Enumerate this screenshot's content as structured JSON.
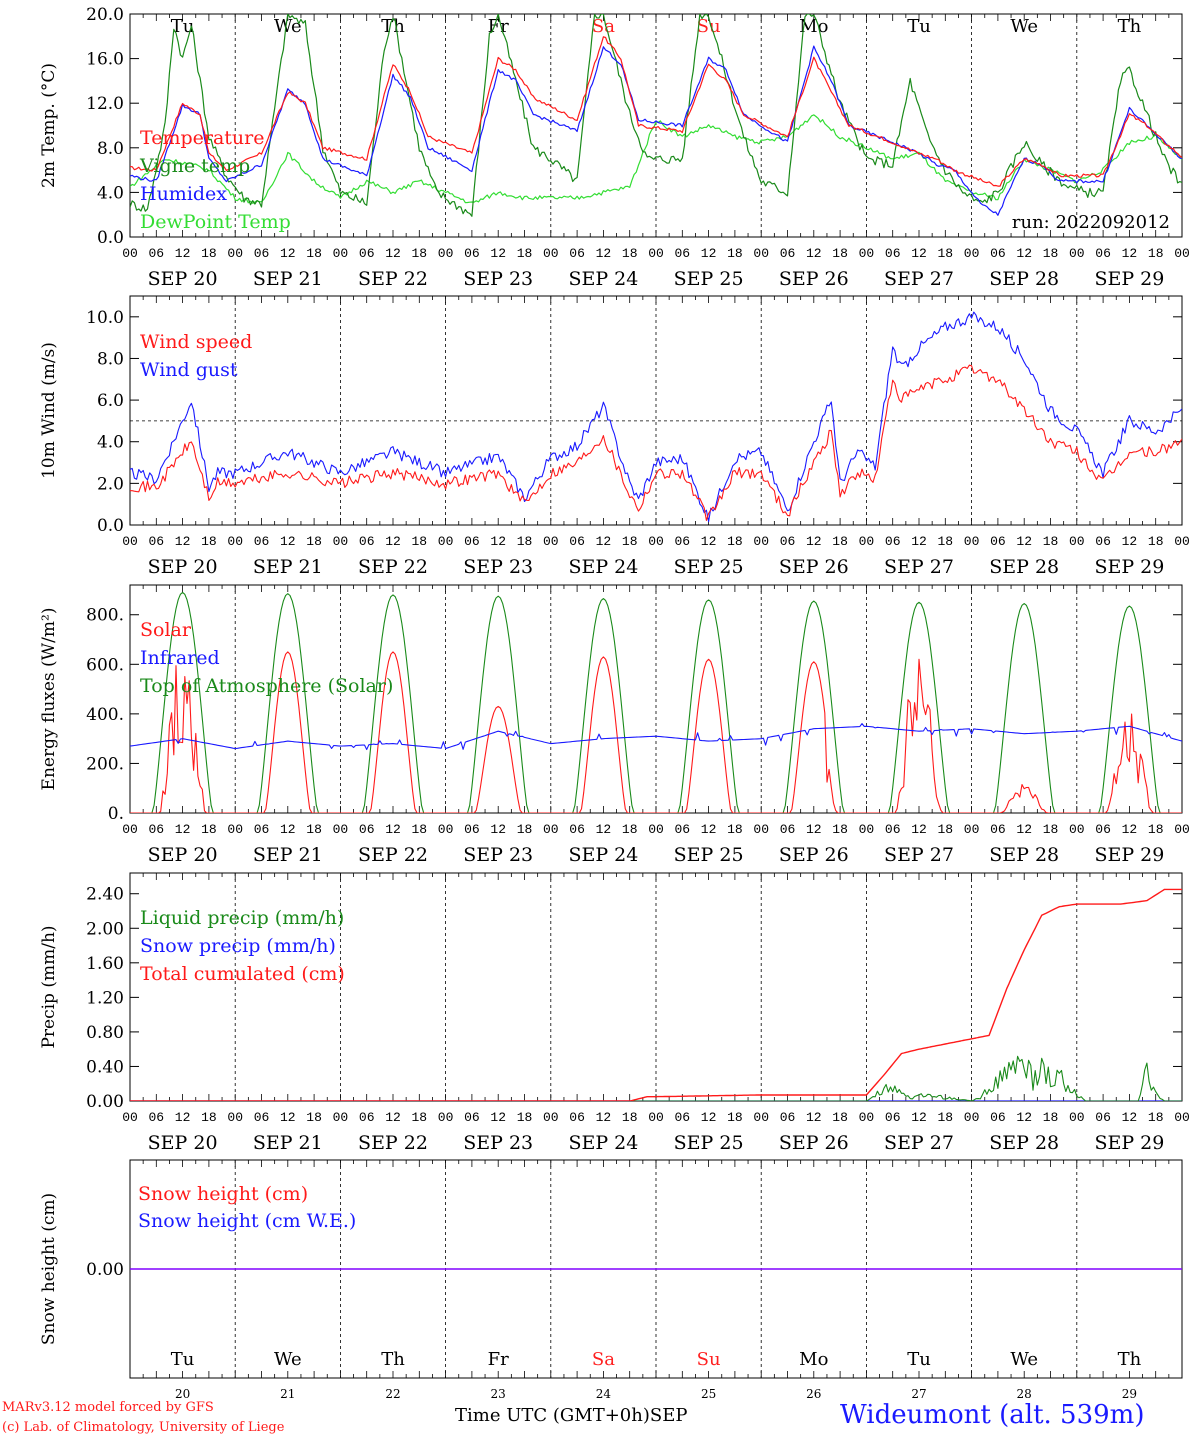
{
  "days": {
    "weekday_top": [
      "Tu",
      "We",
      "Th",
      "Fr",
      "Sa",
      "Su",
      "Mo",
      "Tu",
      "We",
      "Th"
    ],
    "weekday_bottom": [
      "Tu",
      "We",
      "Th",
      "Fr",
      "Sa",
      "Su",
      "Mo",
      "Tu",
      "We",
      "Th"
    ],
    "day_numbers": [
      "20",
      "21",
      "22",
      "23",
      "24",
      "25",
      "26",
      "27",
      "28",
      "29"
    ],
    "day_labels": [
      "SEP 20",
      "SEP 21",
      "SEP 22",
      "SEP 23",
      "SEP 24",
      "SEP 25",
      "SEP 26",
      "SEP 27",
      "SEP 28",
      "SEP 29"
    ],
    "hour_labels": [
      "00",
      "06",
      "12",
      "18"
    ],
    "weekend_color": "#ff2020",
    "normal_color": "#000000",
    "weekend_indices": [
      4,
      5
    ]
  },
  "colors": {
    "red": "#ff1a1a",
    "blue": "#1a1aff",
    "green": "#1a8a1a",
    "lightgreen": "#33dd33",
    "purple": "#8000ff"
  },
  "footer": {
    "credit1": "MARv3.12 model forced by GFS",
    "credit2": "(c) Lab. of Climatology, University of Liege",
    "xlabel": "Time UTC (GMT+0h)",
    "month": "SEP",
    "station": "Wideumont (alt. 539m)"
  },
  "run_label": "run: 2022092012",
  "chart_data": [
    {
      "type": "line",
      "ylabel": "2m Temp. (°C)",
      "ylim": [
        0,
        20
      ],
      "yticks": [
        "0.0",
        "4.0",
        "8.0",
        "12.0",
        "16.0",
        "20.0"
      ],
      "x_unit": "hours since SEP 20 00 UTC",
      "series": [
        {
          "name": "Temperature",
          "color": "red",
          "x": [
            0,
            6,
            12,
            16,
            18,
            22,
            30,
            36,
            40,
            44,
            54,
            60,
            64,
            68,
            78,
            84,
            88,
            92,
            102,
            108,
            112,
            116,
            126,
            132,
            136,
            140,
            150,
            156,
            160,
            164,
            174,
            180,
            184,
            188,
            198,
            204,
            208,
            212,
            222,
            228,
            232,
            236,
            240
          ],
          "y": [
            6.2,
            6.0,
            12.0,
            11.0,
            7.5,
            6.0,
            7.5,
            13.0,
            12.0,
            8.0,
            7.0,
            15.5,
            13.0,
            9.0,
            7.5,
            16.0,
            15.0,
            12.5,
            10.5,
            18.0,
            16.0,
            10.0,
            9.5,
            15.5,
            14.0,
            11.0,
            9.0,
            16.0,
            13.0,
            10.0,
            8.5,
            7.5,
            7.0,
            6.0,
            4.5,
            7.0,
            6.5,
            5.5,
            5.5,
            11.0,
            10.0,
            8.5,
            7.2
          ]
        },
        {
          "name": "Vigne temp",
          "color": "green",
          "x": [
            0,
            4,
            8,
            10,
            12,
            14,
            18,
            22,
            26,
            30,
            36,
            40,
            44,
            48,
            54,
            58,
            60,
            66,
            70,
            78,
            82,
            84,
            92,
            96,
            102,
            106,
            108,
            114,
            118,
            126,
            130,
            132,
            140,
            144,
            150,
            154,
            156,
            162,
            168,
            174,
            178,
            182,
            186,
            190,
            194,
            198,
            204,
            208,
            214,
            218,
            222,
            226,
            228,
            232,
            236,
            240
          ],
          "y": [
            3.0,
            2.5,
            10.0,
            19.0,
            16.0,
            19.0,
            9.0,
            5.5,
            3.5,
            3.0,
            20.0,
            19.0,
            8.0,
            4.0,
            3.0,
            17.0,
            20.0,
            8.0,
            4.0,
            2.0,
            18.0,
            20.0,
            8.0,
            7.0,
            5.0,
            20.0,
            20.0,
            11.0,
            7.0,
            7.0,
            20.0,
            20.0,
            9.0,
            5.0,
            4.0,
            20.0,
            20.0,
            12.0,
            7.0,
            6.5,
            14.0,
            9.0,
            6.0,
            4.0,
            3.0,
            4.0,
            8.5,
            6.5,
            4.5,
            4.0,
            4.0,
            14.0,
            15.0,
            11.0,
            7.0,
            4.5
          ]
        },
        {
          "name": "Humidex",
          "color": "blue",
          "x": [
            0,
            6,
            12,
            16,
            18,
            22,
            30,
            36,
            40,
            44,
            54,
            60,
            64,
            68,
            78,
            84,
            88,
            92,
            102,
            108,
            112,
            116,
            126,
            132,
            136,
            140,
            150,
            156,
            160,
            164,
            174,
            180,
            184,
            188,
            194,
            198,
            204,
            208,
            212,
            222,
            228,
            232,
            236,
            240
          ],
          "y": [
            5.5,
            5.0,
            11.8,
            11.0,
            7.0,
            5.0,
            6.5,
            13.2,
            12.0,
            7.0,
            5.5,
            14.5,
            12.5,
            8.0,
            6.0,
            15.0,
            14.0,
            11.0,
            9.5,
            17.0,
            15.5,
            10.5,
            10.0,
            16.0,
            15.0,
            11.0,
            8.5,
            17.0,
            14.0,
            10.0,
            8.5,
            7.5,
            6.5,
            6.0,
            3.0,
            2.0,
            7.0,
            6.5,
            5.0,
            5.0,
            11.5,
            10.0,
            8.5,
            7.0
          ]
        },
        {
          "name": "DewPoint Temp",
          "color": "lightgreen",
          "x": [
            0,
            8,
            14,
            18,
            24,
            30,
            36,
            42,
            48,
            54,
            60,
            66,
            72,
            78,
            84,
            90,
            96,
            102,
            108,
            114,
            120,
            126,
            132,
            138,
            144,
            150,
            156,
            162,
            168,
            174,
            180,
            186,
            192,
            198,
            204,
            210,
            216,
            222,
            228,
            234,
            240
          ],
          "y": [
            4.5,
            7.0,
            6.5,
            6.0,
            3.5,
            3.0,
            7.5,
            5.0,
            3.5,
            5.0,
            4.0,
            5.0,
            4.0,
            3.0,
            4.0,
            3.5,
            3.5,
            3.5,
            4.0,
            4.5,
            10.5,
            9.0,
            10.0,
            9.0,
            8.5,
            9.0,
            11.0,
            9.0,
            8.0,
            7.0,
            7.5,
            5.0,
            4.0,
            3.5,
            7.0,
            6.0,
            5.0,
            6.0,
            8.5,
            9.0,
            7.0
          ]
        }
      ]
    },
    {
      "type": "line",
      "ylabel": "10m Wind (m/s)",
      "ylim": [
        0,
        11
      ],
      "yticks": [
        "0.0",
        "2.0",
        "4.0",
        "6.0",
        "8.0",
        "10.0"
      ],
      "ref_line": 5.0,
      "series": [
        {
          "name": "Wind speed",
          "color": "red",
          "x": [
            0,
            6,
            12,
            14,
            18,
            20,
            24,
            36,
            48,
            60,
            72,
            84,
            90,
            96,
            102,
            108,
            114,
            116,
            120,
            126,
            132,
            138,
            144,
            150,
            156,
            160,
            162,
            166,
            170,
            174,
            176,
            180,
            186,
            192,
            198,
            204,
            210,
            216,
            222,
            228,
            234,
            240
          ],
          "y": [
            1.9,
            1.8,
            3.5,
            4.0,
            1.3,
            2.0,
            2.0,
            2.5,
            2.0,
            2.5,
            2.0,
            2.5,
            1.0,
            2.5,
            3.0,
            4.3,
            1.5,
            0.8,
            2.5,
            2.5,
            0.3,
            2.5,
            2.5,
            0.5,
            3.0,
            4.5,
            1.5,
            2.5,
            2.2,
            7.0,
            6.0,
            6.5,
            7.0,
            7.5,
            7.0,
            5.5,
            4.0,
            3.5,
            2.0,
            3.5,
            3.5,
            4.0
          ]
        },
        {
          "name": "Wind gust",
          "color": "blue",
          "x": [
            0,
            6,
            12,
            14,
            18,
            20,
            24,
            36,
            48,
            60,
            72,
            84,
            90,
            96,
            102,
            108,
            114,
            116,
            120,
            126,
            132,
            138,
            144,
            150,
            156,
            160,
            162,
            166,
            170,
            174,
            176,
            180,
            186,
            192,
            198,
            204,
            210,
            216,
            222,
            228,
            234,
            240
          ],
          "y": [
            2.5,
            2.2,
            5.0,
            6.0,
            1.8,
            2.5,
            2.5,
            3.5,
            2.5,
            3.5,
            2.5,
            3.3,
            1.3,
            3.2,
            3.8,
            5.7,
            2.0,
            1.2,
            3.0,
            3.2,
            0.3,
            3.2,
            3.5,
            0.7,
            4.0,
            6.0,
            2.0,
            3.5,
            2.8,
            8.5,
            7.5,
            8.5,
            9.5,
            10.0,
            9.5,
            8.0,
            5.5,
            4.5,
            2.5,
            5.0,
            4.5,
            5.5
          ]
        }
      ]
    },
    {
      "type": "line",
      "ylabel": "Energy fluxes (W/m²)",
      "ylim": [
        0,
        920
      ],
      "yticks": [
        "0.",
        "200.",
        "400.",
        "600.",
        "800."
      ],
      "series": [
        {
          "name": "Solar",
          "color": "red",
          "peaks": [
            620,
            650,
            650,
            430,
            630,
            620,
            610,
            580,
            120,
            340
          ]
        },
        {
          "name": "Infrared",
          "color": "blue",
          "x": [
            0,
            12,
            24,
            36,
            48,
            60,
            72,
            84,
            96,
            108,
            120,
            132,
            144,
            156,
            168,
            180,
            192,
            204,
            216,
            228,
            240
          ],
          "y": [
            270,
            300,
            260,
            290,
            270,
            280,
            260,
            330,
            280,
            300,
            310,
            290,
            300,
            340,
            350,
            330,
            340,
            320,
            330,
            350,
            290
          ]
        },
        {
          "name": "Top of Atmosphere (Solar)",
          "color": "green",
          "peaks": [
            890,
            885,
            880,
            875,
            865,
            860,
            855,
            850,
            845,
            835
          ]
        }
      ]
    },
    {
      "type": "line",
      "ylabel": "Precip (mm/h)",
      "ylim": [
        0,
        2.64
      ],
      "yticks": [
        "0.00",
        "0.40",
        "0.80",
        "1.20",
        "1.60",
        "2.00",
        "2.40"
      ],
      "series": [
        {
          "name": "Liquid precip (mm/h)",
          "color": "green",
          "x": [
            0,
            168,
            170,
            172,
            174,
            176,
            178,
            182,
            186,
            192,
            194,
            196,
            200,
            202,
            204,
            206,
            208,
            210,
            212,
            214,
            218,
            230,
            232,
            234,
            236,
            240
          ],
          "y": [
            0,
            0,
            0.1,
            0.2,
            0.25,
            0.1,
            0.05,
            0.1,
            0.05,
            0,
            0.05,
            0.2,
            0.4,
            0.5,
            0.6,
            0.3,
            0.5,
            0.35,
            0.45,
            0.2,
            0,
            0,
            0.45,
            0.1,
            0,
            0
          ]
        },
        {
          "name": "Snow precip (mm/h)",
          "color": "blue",
          "x": [
            0,
            240
          ],
          "y": [
            0,
            0
          ]
        },
        {
          "name": "Total cumulated (cm)",
          "color": "red",
          "x": [
            0,
            114,
            118,
            120,
            144,
            168,
            172,
            176,
            180,
            186,
            192,
            196,
            200,
            204,
            208,
            212,
            216,
            226,
            232,
            236,
            240
          ],
          "y": [
            0,
            0,
            0.05,
            0.05,
            0.07,
            0.07,
            0.3,
            0.55,
            0.6,
            0.66,
            0.72,
            0.76,
            1.3,
            1.75,
            2.15,
            2.25,
            2.28,
            2.28,
            2.32,
            2.45,
            2.45
          ]
        }
      ]
    },
    {
      "type": "line",
      "ylabel": "Snow height (cm)",
      "ylim": [
        -1,
        1
      ],
      "yticks": [
        "0.00"
      ],
      "series": [
        {
          "name": "Snow height (cm)",
          "color": "red",
          "x": [
            0,
            240
          ],
          "y": [
            0,
            0
          ]
        },
        {
          "name": "Snow height (cm W.E.)",
          "color": "blue",
          "x": [
            0,
            240
          ],
          "y": [
            0,
            0
          ]
        }
      ]
    }
  ]
}
